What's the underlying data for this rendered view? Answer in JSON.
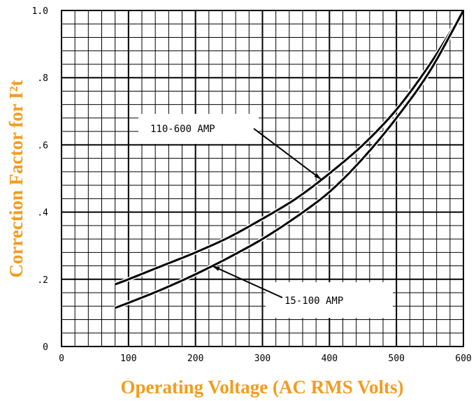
{
  "chart_data": {
    "type": "line",
    "xlabel": "Operating Voltage (AC RMS Volts)",
    "ylabel": "Correction Factor for I²t",
    "xlim": [
      0,
      600
    ],
    "ylim": [
      0,
      1.0
    ],
    "x_ticks": [
      0,
      100,
      200,
      300,
      400,
      500,
      600
    ],
    "x_tick_labels": [
      "0",
      "100",
      "200",
      "300",
      "400",
      "500",
      "600"
    ],
    "y_ticks": [
      0,
      0.2,
      0.4,
      0.6,
      0.8,
      1.0
    ],
    "y_tick_labels": [
      "0",
      ".2",
      ".4",
      ".6",
      ".8",
      "1.0"
    ],
    "grid": true,
    "colors": {
      "axis_title": "#F39C1F",
      "line": "#000000",
      "grid": "#000000"
    },
    "series": [
      {
        "name": "110-600 AMP",
        "x": [
          80,
          100,
          150,
          200,
          250,
          300,
          350,
          400,
          450,
          500,
          550,
          600
        ],
        "y": [
          0.185,
          0.2,
          0.24,
          0.28,
          0.325,
          0.38,
          0.44,
          0.515,
          0.6,
          0.705,
          0.84,
          1.0
        ]
      },
      {
        "name": "15-100 AMP",
        "x": [
          80,
          100,
          150,
          200,
          250,
          300,
          350,
          400,
          450,
          500,
          550,
          600
        ],
        "y": [
          0.115,
          0.13,
          0.17,
          0.215,
          0.265,
          0.32,
          0.385,
          0.46,
          0.56,
          0.68,
          0.82,
          1.0
        ]
      }
    ],
    "annotations": [
      {
        "text": "110-600 AMP",
        "series": 0,
        "points_to_x": 388
      },
      {
        "text": "15-100 AMP",
        "series": 1,
        "points_to_x": 225
      }
    ]
  }
}
